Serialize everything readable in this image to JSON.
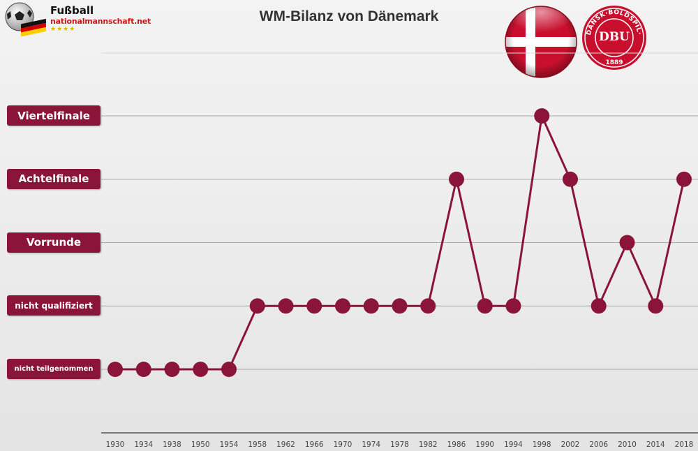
{
  "logo": {
    "line1": "Fußball",
    "line2": "nationalmannschaft.net",
    "stars": "★★★★"
  },
  "chart_data": {
    "type": "line",
    "title": "WM-Bilanz von Dänemark",
    "xlabel": "",
    "ylabel": "",
    "y_categories": [
      "nicht teilgenommen",
      "nicht qualifiziert",
      "Vorrunde",
      "Achtelfinale",
      "Viertelfinale"
    ],
    "x": [
      "1930",
      "1934",
      "1938",
      "1950",
      "1954",
      "1958",
      "1962",
      "1966",
      "1970",
      "1974",
      "1978",
      "1982",
      "1986",
      "1990",
      "1994",
      "1998",
      "2002",
      "2006",
      "2010",
      "2014",
      "2018"
    ],
    "series": [
      {
        "values": [
          "nicht teilgenommen",
          "nicht teilgenommen",
          "nicht teilgenommen",
          "nicht teilgenommen",
          "nicht teilgenommen",
          "nicht qualifiziert",
          "nicht qualifiziert",
          "nicht qualifiziert",
          "nicht qualifiziert",
          "nicht qualifiziert",
          "nicht qualifiziert",
          "nicht qualifiziert",
          "Achtelfinale",
          "nicht qualifiziert",
          "nicht qualifiziert",
          "Viertelfinale",
          "Achtelfinale",
          "nicht qualifiziert",
          "Vorrunde",
          "nicht qualifiziert",
          "Achtelfinale"
        ]
      }
    ],
    "grid": true,
    "legend": "none",
    "colors": {
      "line": "#8a1538",
      "label_bg": "#8a1538",
      "grid": "#a8a8a8",
      "axis": "#555555"
    }
  },
  "flag": {
    "colors": {
      "red": "#c8102e",
      "white": "#ffffff"
    }
  },
  "badge": {
    "text": "DBU",
    "ring_text": "DANSK·BOLDSPIL·UNION",
    "year": "1889",
    "color": "#c8102e"
  }
}
